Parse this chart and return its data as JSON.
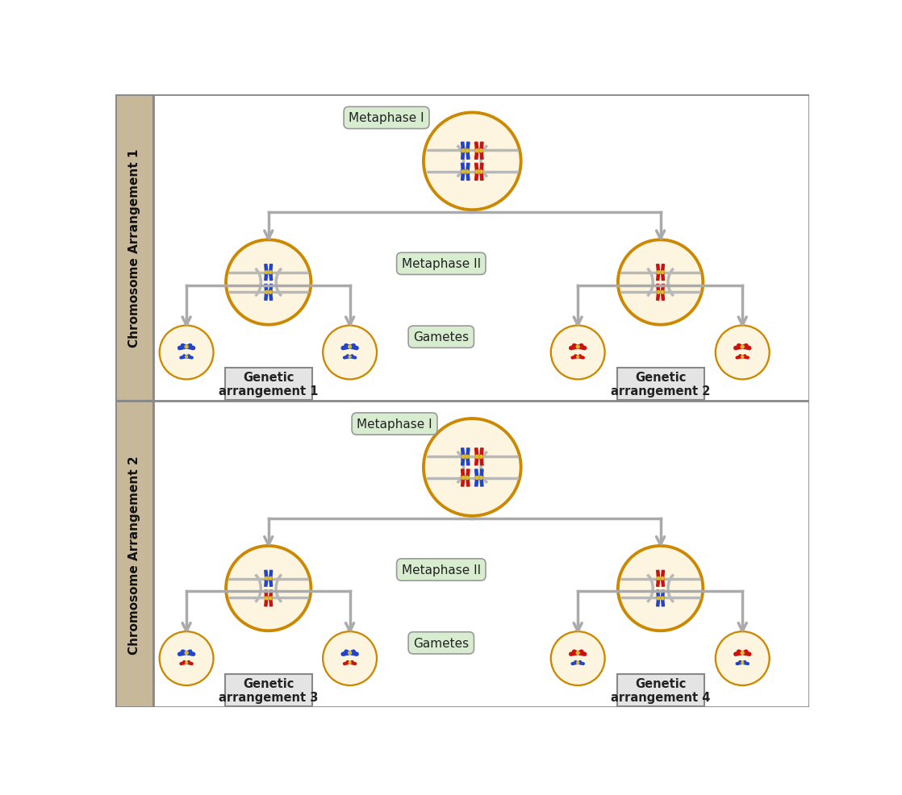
{
  "bg_color": "#ffffff",
  "sidebar_color": "#c8b89a",
  "cell_outer_color": "#cc8800",
  "cell_inner_color": "#fdf5e0",
  "spindle_color": "#b8b8b8",
  "blue_chrom": "#2244cc",
  "red_chrom": "#cc1111",
  "centromere_color": "#ddbb22",
  "label_box_color": "#d8ecd0",
  "arrow_color": "#aaaaaa",
  "line_color": "#aaaaaa",
  "text_color": "#222222",
  "genetic_labels": [
    "Genetic\narrangement 1",
    "Genetic\narrangement 2",
    "Genetic\narrangement 3",
    "Genetic\narrangement 4"
  ],
  "sidebar_labels": [
    "Chromosome Arrangement 1",
    "Chromosome Arrangement 2"
  ]
}
